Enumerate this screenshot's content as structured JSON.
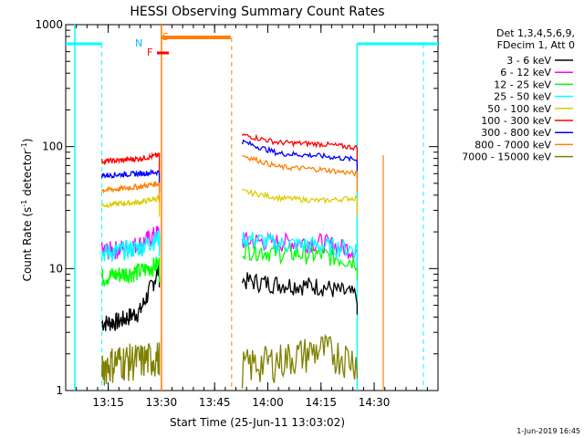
{
  "chart_data": {
    "type": "line",
    "title": "HESSI Observing Summary Count Rates",
    "xlabel": "Start Time (25-Jun-11 13:03:02)",
    "ylabel_main": "Count Rate (s",
    "ylabel_sup1": "-1",
    "ylabel_mid": " detector",
    "ylabel_sup2": "-1",
    "ylabel_end": ")",
    "yscale": "log",
    "ylim": [
      1,
      1000
    ],
    "xlim_minutes": [
      13.05,
      14.8
    ],
    "x_ticks": [
      {
        "minute": 13.25,
        "label": "13:15"
      },
      {
        "minute": 13.5,
        "label": "13:30"
      },
      {
        "minute": 13.75,
        "label": "13:45"
      },
      {
        "minute": 14.0,
        "label": "14:00"
      },
      {
        "minute": 14.25,
        "label": "14:15"
      },
      {
        "minute": 14.5,
        "label": "14:30"
      }
    ],
    "y_ticks": [
      {
        "value": 1,
        "label": "1"
      },
      {
        "value": 10,
        "label": "10"
      },
      {
        "value": 100,
        "label": "100"
      },
      {
        "value": 1000,
        "label": "1000"
      }
    ],
    "legend_header": [
      "Det 1,3,4,5,6,9,",
      "FDecim 1, Att 0"
    ],
    "series": [
      {
        "name": "3 - 6 keV",
        "color": "#000000",
        "seg1": [
          3.6,
          3.7,
          4.5,
          10.0
        ],
        "seg2": [
          8.0,
          7.5,
          7.2,
          6.0
        ]
      },
      {
        "name": "6 - 12 keV",
        "color": "#ff00ff",
        "seg1": [
          14.0,
          14.5,
          16.0,
          20.0
        ],
        "seg2": [
          17.0,
          16.5,
          16.5,
          14.0
        ]
      },
      {
        "name": "12 - 25 keV",
        "color": "#00ff00",
        "seg1": [
          8.5,
          9.0,
          9.5,
          11.0
        ],
        "seg2": [
          14.5,
          13.5,
          13.0,
          11.5
        ]
      },
      {
        "name": "25 - 50 keV",
        "color": "#00ffff",
        "seg1": [
          13.5,
          14.0,
          15.0,
          18.0
        ],
        "seg2": [
          18.0,
          16.0,
          15.5,
          14.5
        ]
      },
      {
        "name": "50 - 100 keV",
        "color": "#ddcc00",
        "seg1": [
          33.0,
          34.0,
          35.0,
          38.0
        ],
        "seg2": [
          43.0,
          38.0,
          36.0,
          38.0
        ]
      },
      {
        "name": "100 - 300 keV",
        "color": "#ff0000",
        "seg1": [
          76.0,
          77.0,
          80.0,
          85.0
        ],
        "seg2": [
          125.0,
          108.0,
          105.0,
          98.0
        ]
      },
      {
        "name": "300 - 800 keV",
        "color": "#0000ff",
        "seg1": [
          58.0,
          59.0,
          60.0,
          62.0
        ],
        "seg2": [
          110.0,
          88.0,
          84.0,
          78.0
        ]
      },
      {
        "name": "800 - 7000 keV",
        "color": "#ff8000",
        "seg1": [
          44.0,
          45.0,
          47.0,
          50.0
        ],
        "seg2": [
          85.0,
          68.0,
          65.0,
          60.0
        ]
      },
      {
        "name": "7000 - 15000 keV",
        "color": "#808000",
        "seg1": [
          1.6,
          1.8,
          1.8,
          1.9
        ],
        "seg2": [
          1.6,
          1.8,
          2.2,
          1.8
        ]
      }
    ],
    "seg1_x": [
      13.22,
      13.3,
      13.4,
      13.49
    ],
    "seg2_x": [
      13.88,
      14.05,
      14.25,
      14.42
    ],
    "flags": [
      {
        "label": "N",
        "color": "#00bfff"
      },
      {
        "label": "S",
        "color": "#ff8000"
      },
      {
        "label": "F",
        "color": "#ff0000"
      }
    ],
    "saa_minutes": [
      13.5,
      13.83
    ],
    "night_minutes": [
      [
        13.05,
        13.22
      ],
      [
        14.42,
        14.8
      ]
    ],
    "footer": "1-Jun-2019 16:45"
  }
}
